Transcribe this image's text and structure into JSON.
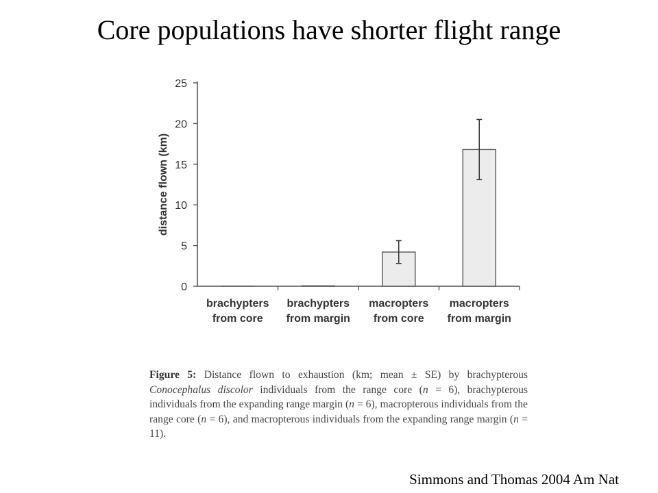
{
  "slide": {
    "title": "Core populations have shorter flight range",
    "citation": "Simmons and Thomas 2004 Am Nat"
  },
  "caption": {
    "label": "Figure 5:",
    "part1": "Distance flown to exhaustion (km; mean ± SE) by brachypterous",
    "species": "Conocephalus discolor",
    "part2": "individuals from the range core (",
    "n_sym": "n",
    "part3": "= 6), brachypterous individuals from the expanding range margin (",
    "part4": "= 6), macropterous individuals from the range core (",
    "part5": "= 6), and macropterous individuals from the expanding range margin (",
    "part6": "= 11)."
  },
  "chart_data": {
    "type": "bar",
    "categories": [
      [
        "brachypters",
        "from core"
      ],
      [
        "brachypters",
        "from margin"
      ],
      [
        "macropters",
        "from core"
      ],
      [
        "macropters",
        "from margin"
      ]
    ],
    "values": [
      0.0,
      0.05,
      4.2,
      16.8
    ],
    "errors": [
      0,
      0,
      1.4,
      3.7
    ],
    "ylabel": "distance flown (km)",
    "ylim": [
      0,
      25
    ],
    "yticks": [
      0,
      5,
      10,
      15,
      20,
      25
    ],
    "grid": false,
    "colors": {
      "bar_fill": "#ececec",
      "stroke": "#555555"
    }
  }
}
